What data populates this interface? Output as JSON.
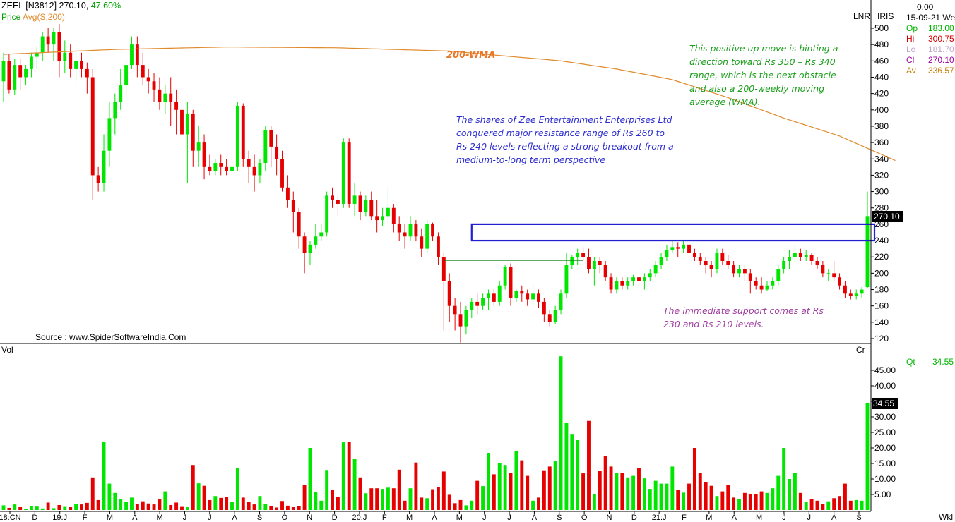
{
  "header": {
    "symbol": "ZEEL [N3812]",
    "price": "270.10,",
    "change": "47.60%",
    "line2_a": "Price",
    "line2_b": "Avg(S,200)",
    "lnr": "LNR",
    "iris": "IRIS",
    "cr": "Cr",
    "vol": "Vol",
    "source": "Source : www.SpiderSoftwareIndia.Com",
    "period": "Wkl"
  },
  "info_panel": {
    "top_value": "0.00",
    "date": "15-09-21 We",
    "rows": [
      {
        "label": "Op",
        "value": "183.00",
        "color": "#00b300"
      },
      {
        "label": "Hi",
        "value": "300.75",
        "color": "#d40000"
      },
      {
        "label": "Lo",
        "value": "181.70",
        "color": "#bfa6c8"
      },
      {
        "label": "Cl",
        "value": "270.10",
        "color": "#9b009b"
      },
      {
        "label": "Av",
        "value": "336.57",
        "color": "#c47a00"
      }
    ],
    "qt_label": "Qt",
    "qt_value": "34.55"
  },
  "annotations": {
    "wma_label": "200-WMA",
    "green_note": [
      "This positive up move is hinting a",
      "direction toward Rs 350 – Rs 340",
      "range, which is the next obstacle",
      "and also a 200-weekly moving",
      "average (WMA)."
    ],
    "blue_note": [
      "The shares of Zee Entertainment Enterprises Ltd",
      "conquered major resistance range of Rs 260 to",
      "Rs 240 levels reflecting a strong breakout from a",
      "medium-to-long term perspective"
    ],
    "purple_note": [
      "The immediate support comes at Rs",
      "230 and Rs 210 levels."
    ]
  },
  "colors": {
    "up": "#00e600",
    "down": "#e60000",
    "wma": "#e08a2c",
    "box": "#2020d0",
    "support_line": "#007a00",
    "green_note": "#1a9e1a",
    "blue_note": "#2c2cd0",
    "purple_note": "#a040a0",
    "wma_label": "#e8782a"
  },
  "chart_data": [
    {
      "type": "candlestick",
      "title": "ZEEL [N3812]",
      "period": "weekly",
      "ylim": [
        115,
        507
      ],
      "y_ticks": [
        500,
        480,
        460,
        440,
        420,
        400,
        380,
        360,
        340,
        320,
        300,
        280,
        260,
        240,
        220,
        200,
        180,
        160,
        140,
        120
      ],
      "x_labels": [
        "18:CN",
        "D",
        "19:J",
        "F",
        "M",
        "A",
        "M",
        "J",
        "J",
        "A",
        "S",
        "O",
        "N",
        "D",
        "20:J",
        "F",
        "M",
        "A",
        "M",
        "J",
        "J",
        "A",
        "S",
        "O",
        "N",
        "D",
        "21:J",
        "F",
        "M",
        "A",
        "M",
        "J",
        "J",
        "A",
        "S"
      ],
      "last_price": "270.10",
      "ohlc": [
        [
          435,
          470,
          410,
          460
        ],
        [
          460,
          468,
          420,
          425
        ],
        [
          425,
          462,
          418,
          455
        ],
        [
          455,
          463,
          425,
          440
        ],
        [
          440,
          455,
          430,
          450
        ],
        [
          450,
          470,
          440,
          465
        ],
        [
          465,
          478,
          450,
          470
        ],
        [
          470,
          495,
          460,
          490
        ],
        [
          490,
          500,
          470,
          480
        ],
        [
          480,
          500,
          460,
          495
        ],
        [
          495,
          505,
          440,
          460
        ],
        [
          460,
          485,
          445,
          470
        ],
        [
          470,
          480,
          440,
          450
        ],
        [
          450,
          470,
          435,
          460
        ],
        [
          460,
          470,
          440,
          450
        ],
        [
          450,
          458,
          420,
          440
        ],
        [
          440,
          450,
          290,
          320
        ],
        [
          320,
          330,
          300,
          310
        ],
        [
          310,
          370,
          300,
          350
        ],
        [
          350,
          410,
          330,
          390
        ],
        [
          390,
          420,
          370,
          410
        ],
        [
          410,
          450,
          400,
          430
        ],
        [
          430,
          460,
          420,
          455
        ],
        [
          455,
          490,
          450,
          480
        ],
        [
          480,
          490,
          440,
          455
        ],
        [
          455,
          470,
          430,
          440
        ],
        [
          440,
          450,
          420,
          435
        ],
        [
          435,
          445,
          410,
          425
        ],
        [
          425,
          440,
          400,
          410
        ],
        [
          410,
          430,
          395,
          420
        ],
        [
          420,
          440,
          380,
          410
        ],
        [
          410,
          425,
          370,
          400
        ],
        [
          400,
          420,
          340,
          370
        ],
        [
          370,
          410,
          310,
          395
        ],
        [
          395,
          400,
          330,
          350
        ],
        [
          350,
          380,
          330,
          360
        ],
        [
          360,
          370,
          315,
          330
        ],
        [
          330,
          345,
          320,
          325
        ],
        [
          325,
          340,
          320,
          335
        ],
        [
          335,
          345,
          320,
          330
        ],
        [
          330,
          340,
          320,
          325
        ],
        [
          325,
          335,
          318,
          330
        ],
        [
          330,
          410,
          325,
          405
        ],
        [
          405,
          408,
          330,
          340
        ],
        [
          340,
          350,
          310,
          330
        ],
        [
          330,
          345,
          300,
          320
        ],
        [
          320,
          340,
          310,
          335
        ],
        [
          335,
          380,
          325,
          375
        ],
        [
          375,
          380,
          330,
          355
        ],
        [
          355,
          370,
          320,
          340
        ],
        [
          340,
          350,
          300,
          305
        ],
        [
          305,
          320,
          280,
          290
        ],
        [
          290,
          300,
          250,
          275
        ],
        [
          275,
          280,
          230,
          245
        ],
        [
          245,
          250,
          200,
          225
        ],
        [
          225,
          240,
          210,
          235
        ],
        [
          235,
          260,
          230,
          245
        ],
        [
          245,
          260,
          240,
          250
        ],
        [
          250,
          300,
          245,
          295
        ],
        [
          295,
          305,
          280,
          290
        ],
        [
          290,
          295,
          270,
          285
        ],
        [
          285,
          365,
          280,
          360
        ],
        [
          360,
          365,
          280,
          285
        ],
        [
          285,
          310,
          270,
          295
        ],
        [
          295,
          300,
          265,
          275
        ],
        [
          275,
          295,
          270,
          290
        ],
        [
          290,
          300,
          265,
          270
        ],
        [
          270,
          290,
          250,
          265
        ],
        [
          265,
          280,
          258,
          270
        ],
        [
          270,
          305,
          260,
          280
        ],
        [
          280,
          285,
          250,
          260
        ],
        [
          260,
          270,
          240,
          250
        ],
        [
          250,
          260,
          230,
          245
        ],
        [
          245,
          270,
          240,
          260
        ],
        [
          260,
          265,
          240,
          245
        ],
        [
          245,
          255,
          220,
          230
        ],
        [
          230,
          265,
          225,
          260
        ],
        [
          260,
          262,
          240,
          245
        ],
        [
          245,
          250,
          210,
          220
        ],
        [
          220,
          225,
          130,
          190
        ],
        [
          190,
          200,
          140,
          160
        ],
        [
          160,
          170,
          130,
          150
        ],
        [
          150,
          165,
          115,
          135
        ],
        [
          135,
          160,
          125,
          155
        ],
        [
          155,
          170,
          145,
          165
        ],
        [
          165,
          175,
          150,
          160
        ],
        [
          160,
          175,
          155,
          170
        ],
        [
          170,
          180,
          155,
          175
        ],
        [
          175,
          180,
          160,
          165
        ],
        [
          165,
          190,
          160,
          185
        ],
        [
          185,
          210,
          180,
          208
        ],
        [
          208,
          212,
          160,
          170
        ],
        [
          170,
          180,
          165,
          178
        ],
        [
          178,
          185,
          165,
          175
        ],
        [
          175,
          180,
          160,
          168
        ],
        [
          168,
          185,
          160,
          175
        ],
        [
          175,
          180,
          158,
          165
        ],
        [
          165,
          170,
          140,
          150
        ],
        [
          150,
          155,
          135,
          140
        ],
        [
          140,
          160,
          138,
          155
        ],
        [
          155,
          180,
          150,
          175
        ],
        [
          175,
          225,
          170,
          210
        ],
        [
          210,
          222,
          205,
          220
        ],
        [
          220,
          230,
          210,
          225
        ],
        [
          225,
          232,
          215,
          220
        ],
        [
          220,
          230,
          200,
          205
        ],
        [
          205,
          220,
          185,
          215
        ],
        [
          215,
          220,
          200,
          210
        ],
        [
          210,
          215,
          190,
          195
        ],
        [
          195,
          200,
          175,
          180
        ],
        [
          180,
          195,
          175,
          190
        ],
        [
          190,
          195,
          180,
          185
        ],
        [
          185,
          195,
          180,
          190
        ],
        [
          190,
          198,
          185,
          195
        ],
        [
          195,
          200,
          185,
          190
        ],
        [
          190,
          200,
          180,
          195
        ],
        [
          195,
          205,
          190,
          200
        ],
        [
          200,
          215,
          195,
          210
        ],
        [
          210,
          225,
          205,
          220
        ],
        [
          220,
          235,
          215,
          228
        ],
        [
          228,
          240,
          225,
          232
        ],
        [
          232,
          238,
          220,
          230
        ],
        [
          230,
          240,
          225,
          235
        ],
        [
          235,
          262,
          220,
          225
        ],
        [
          225,
          230,
          215,
          220
        ],
        [
          220,
          225,
          210,
          215
        ],
        [
          215,
          220,
          200,
          210
        ],
        [
          210,
          215,
          195,
          205
        ],
        [
          205,
          230,
          200,
          225
        ],
        [
          225,
          230,
          210,
          215
        ],
        [
          215,
          222,
          205,
          210
        ],
        [
          210,
          215,
          195,
          200
        ],
        [
          200,
          210,
          195,
          205
        ],
        [
          205,
          210,
          190,
          200
        ],
        [
          200,
          205,
          175,
          190
        ],
        [
          190,
          195,
          180,
          185
        ],
        [
          185,
          195,
          175,
          180
        ],
        [
          180,
          190,
          178,
          185
        ],
        [
          185,
          195,
          180,
          190
        ],
        [
          190,
          210,
          185,
          205
        ],
        [
          205,
          220,
          200,
          215
        ],
        [
          215,
          228,
          205,
          220
        ],
        [
          220,
          235,
          215,
          225
        ],
        [
          225,
          230,
          215,
          220
        ],
        [
          220,
          228,
          215,
          222
        ],
        [
          222,
          225,
          210,
          215
        ],
        [
          215,
          220,
          205,
          210
        ],
        [
          210,
          215,
          195,
          200
        ],
        [
          200,
          205,
          190,
          200
        ],
        [
          200,
          215,
          190,
          195
        ],
        [
          195,
          200,
          180,
          185
        ],
        [
          185,
          190,
          170,
          175
        ],
        [
          175,
          180,
          168,
          172
        ],
        [
          172,
          180,
          168,
          175
        ],
        [
          175,
          183,
          170,
          180
        ],
        [
          183,
          300,
          182,
          270
        ]
      ]
    },
    {
      "type": "line",
      "name": "Avg(S,200)",
      "x_index": [
        0,
        20,
        40,
        60,
        80,
        100,
        110,
        120,
        130,
        140,
        150,
        160
      ],
      "values": [
        468,
        474,
        477,
        476,
        472,
        460,
        450,
        437,
        415,
        390,
        368,
        338
      ]
    },
    {
      "type": "bar",
      "name": "Vol",
      "ylabel": "Cr",
      "ylim": [
        0,
        50
      ],
      "y_ticks": [
        "45.00",
        "40.00",
        "35.00",
        "30.00",
        "25.00",
        "20.00",
        "15.00",
        "10.00",
        "5.00"
      ],
      "last_value": "34.55",
      "values": [
        1.5,
        0.7,
        1.8,
        0.9,
        0.4,
        1.3,
        1.1,
        0.5,
        2.4,
        0.6,
        1.6,
        1.0,
        0.9,
        1.9,
        1.8,
        2.3,
        10.5,
        3.2,
        22.0,
        8.5,
        5.5,
        3.4,
        2.5,
        4.0,
        1.9,
        2.8,
        2.1,
        1.8,
        3.4,
        6.0,
        1.6,
        2.4,
        1.0,
        0.9,
        14.5,
        8.6,
        7.8,
        3.2,
        4.5,
        3.9,
        4.2,
        2.5,
        13.4,
        4.0,
        2.6,
        1.8,
        4.5,
        2.0,
        1.2,
        0.8,
        2.9,
        1.4,
        0.9,
        1.2,
        8.1,
        20.0,
        5.8,
        3.0,
        12.9,
        6.4,
        4.3,
        21.8,
        22.0,
        16.5,
        10.5,
        5.4,
        7.0,
        7.0,
        6.8,
        7.2,
        7.0,
        13.0,
        3.0,
        7.0,
        15.3,
        4.0,
        3.8,
        6.7,
        7.5,
        12.4,
        4.9,
        2.2,
        3.2,
        1.5,
        3.0,
        9.4,
        7.7,
        18.4,
        11.5,
        15.2,
        14.5,
        12.0,
        19.0,
        16.0,
        11.0,
        3.0,
        4.0,
        12.8,
        14.0,
        15.8,
        49.5,
        28.0,
        24.5,
        22.5,
        11.8,
        28.7,
        5.0,
        12.5,
        17.4,
        14.0,
        12.0,
        12.0,
        10.5,
        11.0,
        13.5,
        10.2,
        6.8,
        9.4,
        8.5,
        8.5,
        14.0,
        6.5,
        5.6,
        8.5,
        20.0,
        12.0,
        9.0,
        7.8,
        4.5,
        6.0,
        8.0,
        4.0,
        3.5,
        5.5,
        5.2,
        5.0,
        6.0,
        5.5,
        7.0,
        11.0,
        20.0,
        10.0,
        12.0,
        5.5,
        2.5,
        3.5,
        3.0,
        2.0,
        2.8,
        3.8,
        4.5,
        8.5,
        3.0,
        3.2,
        3.0,
        34.55
      ]
    }
  ]
}
